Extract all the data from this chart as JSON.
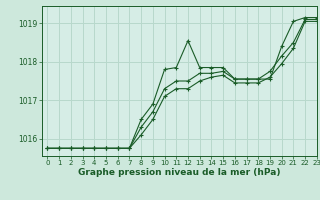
{
  "title": "Graphe pression niveau de la mer (hPa)",
  "bg_color": "#cde8dc",
  "plot_bg_color": "#d6ede6",
  "grid_color": "#b8d8cc",
  "line_color": "#1a5c28",
  "xlim": [
    -0.5,
    23
  ],
  "ylim": [
    1015.55,
    1019.45
  ],
  "yticks": [
    1016,
    1017,
    1018,
    1019
  ],
  "xticks": [
    0,
    1,
    2,
    3,
    4,
    5,
    6,
    7,
    8,
    9,
    10,
    11,
    12,
    13,
    14,
    15,
    16,
    17,
    18,
    19,
    20,
    21,
    22,
    23
  ],
  "series": [
    [
      1015.75,
      1015.75,
      1015.75,
      1015.75,
      1015.75,
      1015.75,
      1015.75,
      1015.75,
      1016.5,
      1016.9,
      1017.8,
      1017.85,
      1018.55,
      1017.85,
      1017.85,
      1017.85,
      1017.55,
      1017.55,
      1017.55,
      1017.55,
      1018.4,
      1019.05,
      1019.15,
      1019.15
    ],
    [
      1015.75,
      1015.75,
      1015.75,
      1015.75,
      1015.75,
      1015.75,
      1015.75,
      1015.75,
      1016.3,
      1016.7,
      1017.3,
      1017.5,
      1017.5,
      1017.7,
      1017.7,
      1017.75,
      1017.55,
      1017.55,
      1017.55,
      1017.75,
      1018.15,
      1018.5,
      1019.1,
      1019.1
    ],
    [
      1015.75,
      1015.75,
      1015.75,
      1015.75,
      1015.75,
      1015.75,
      1015.75,
      1015.75,
      1016.1,
      1016.5,
      1017.1,
      1017.3,
      1017.3,
      1017.5,
      1017.6,
      1017.65,
      1017.45,
      1017.45,
      1017.45,
      1017.6,
      1017.95,
      1018.35,
      1019.05,
      1019.05
    ]
  ]
}
